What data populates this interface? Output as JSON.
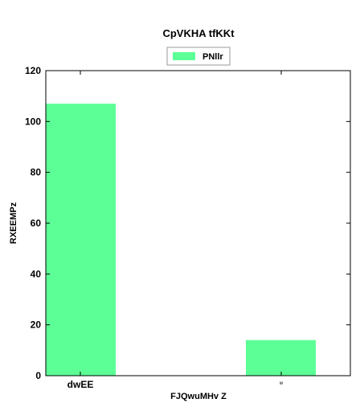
{
  "chart_data": {
    "type": "bar",
    "title": "CpVKHA tfKKt",
    "xlabel": "FJQwuMHv Z",
    "ylabel": "RXEEMPz",
    "categories": [
      "dwEE",
      "w"
    ],
    "series": [
      {
        "name": "PNllr",
        "values": [
          107,
          14
        ],
        "color": "#5cff96"
      }
    ],
    "ylim": [
      0,
      120
    ],
    "yticks": [
      0,
      20,
      40,
      60,
      80,
      100,
      120
    ],
    "grid": false,
    "legend_position": "top-center"
  }
}
